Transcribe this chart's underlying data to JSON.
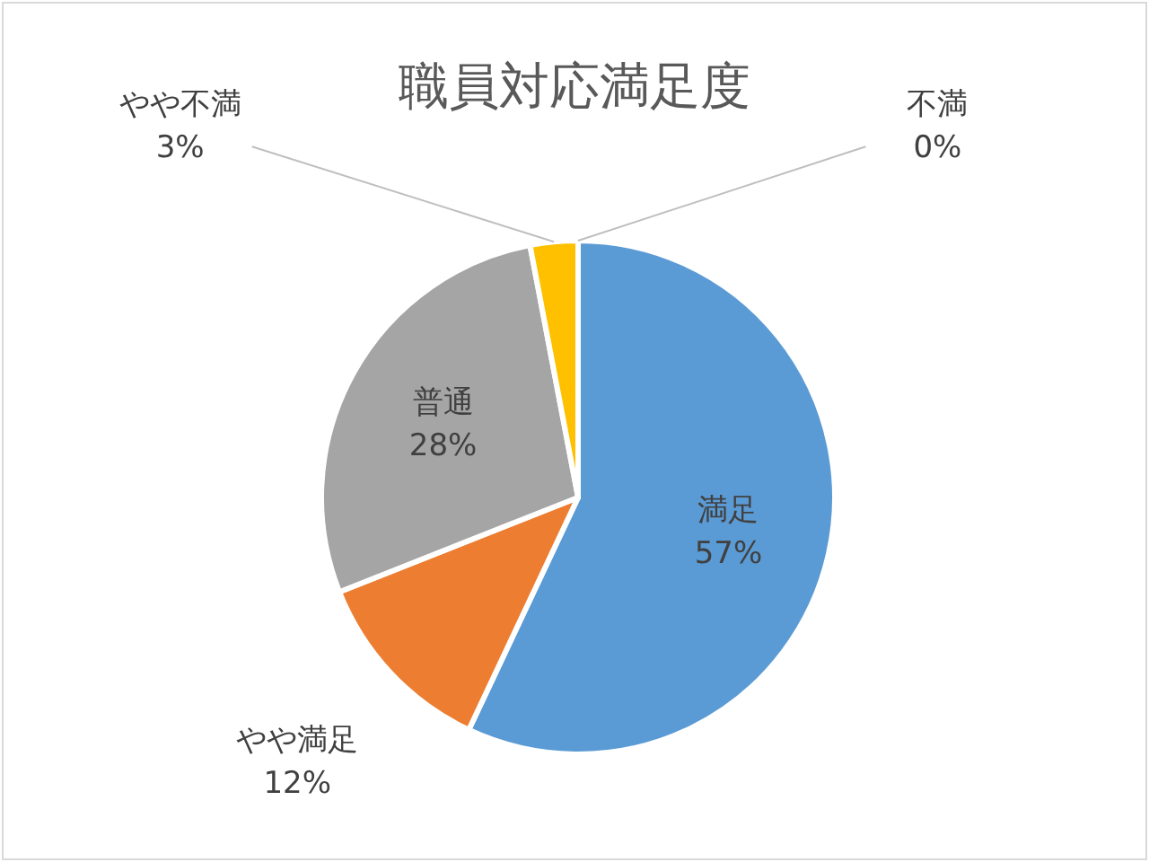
{
  "chart_data": {
    "type": "pie",
    "title": "職員対応満足度",
    "categories": [
      "満足",
      "やや満足",
      "普通",
      "やや不満",
      "不満"
    ],
    "values": [
      57,
      12,
      28,
      3,
      0
    ],
    "value_labels": [
      "57%",
      "12%",
      "28%",
      "3%",
      "0%"
    ],
    "colors": [
      "#5b9bd5",
      "#ed7d31",
      "#a5a5a5",
      "#ffc000",
      "#4472c4"
    ]
  }
}
